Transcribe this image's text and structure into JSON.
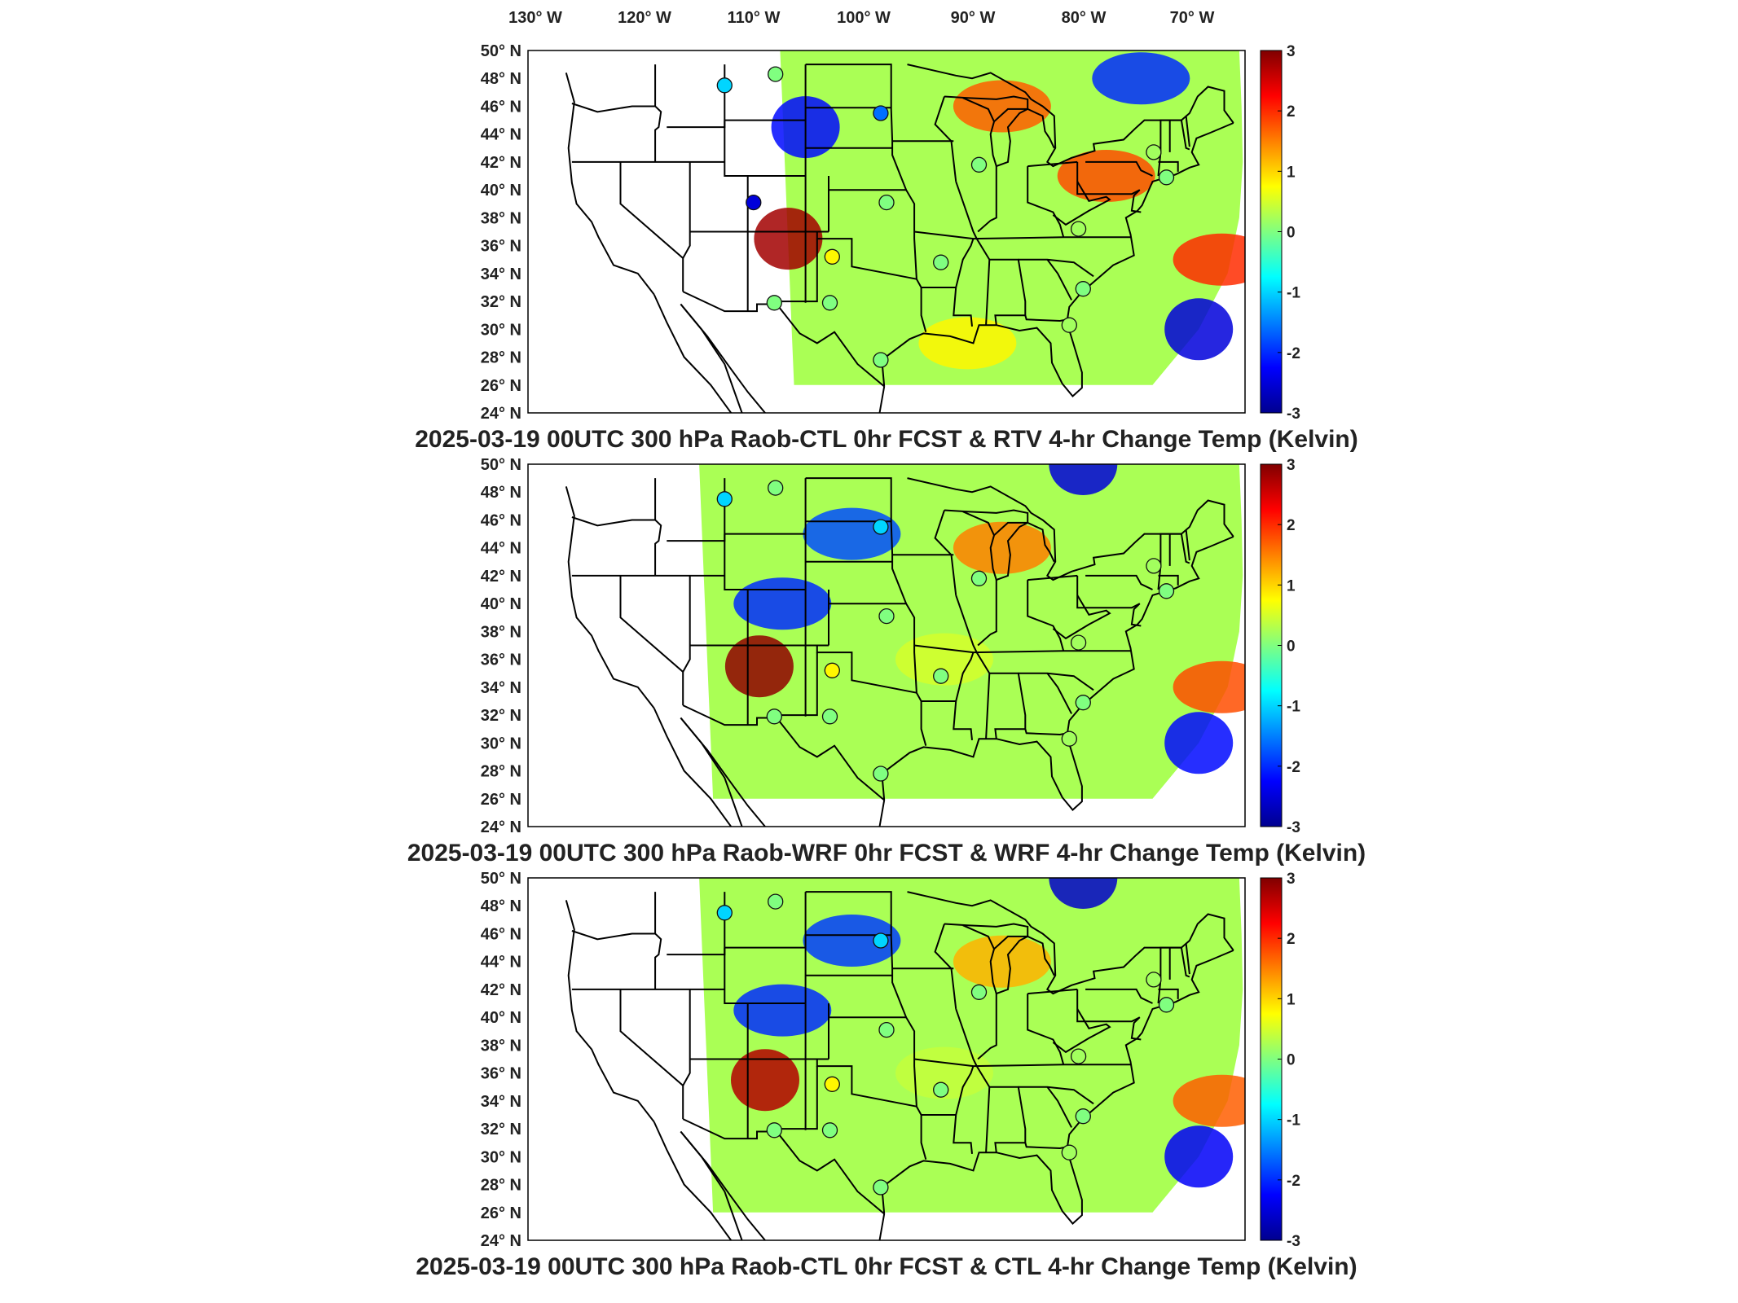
{
  "figure": {
    "top_axis_labels": [
      "130° W",
      "120° W",
      "110° W",
      "100° W",
      "90° W",
      "80° W",
      "70° W"
    ],
    "lat_labels": [
      "50° N",
      "48° N",
      "46° N",
      "44° N",
      "42° N",
      "40° N",
      "38° N",
      "36° N",
      "34° N",
      "32° N",
      "30° N",
      "28° N",
      "26° N",
      "24° N"
    ],
    "colorbar_ticks": [
      "3",
      "2",
      "1",
      "0",
      "-1",
      "-2",
      "-3"
    ],
    "colors": {
      "colormap": [
        "#00008f",
        "#0000ff",
        "#0080ff",
        "#00ffff",
        "#80ff80",
        "#ffff00",
        "#ff8000",
        "#ff0000",
        "#800000"
      ],
      "map_lines": "#000000"
    }
  },
  "chart_data": [
    {
      "type": "heatmap",
      "title": "2025-03-19 00UTC 300 hPa Raob-CTL 0hr FCST & RTV 4-hr Change Temp (Kelvin)",
      "projection": "Lambert conformal, CONUS",
      "lon_range": [
        -130,
        -65
      ],
      "lat_range": [
        24,
        50
      ],
      "color_range": [
        -3,
        3
      ],
      "domain_west_edge_lon": -105,
      "fields": [
        {
          "region": "Colorado / New Mexico",
          "lon": -105.5,
          "lat": 36.5,
          "value": 2.8
        },
        {
          "region": "Wyoming / S. Dakota",
          "lon": -104,
          "lat": 44.5,
          "value": -2.2
        },
        {
          "region": "Upper Michigan / Lake Superior",
          "lon": -87,
          "lat": 46,
          "value": 1.7
        },
        {
          "region": "Pennsylvania",
          "lon": -78,
          "lat": 41,
          "value": 1.8
        },
        {
          "region": "Western Atlantic",
          "lon": -68,
          "lat": 35,
          "value": 2.0
        },
        {
          "region": "Western Atlantic (south)",
          "lon": -70,
          "lat": 30,
          "value": -2.5
        },
        {
          "region": "Maine / Quebec",
          "lon": -75,
          "lat": 48,
          "value": -2.0
        },
        {
          "region": "Gulf Coast",
          "lon": -90,
          "lat": 29,
          "value": 0.8
        }
      ],
      "raob_points": [
        {
          "lon": -111,
          "lat": 47.5,
          "value": -1.0
        },
        {
          "lon": -106.6,
          "lat": 48.3,
          "value": 0.0
        },
        {
          "lon": -97.5,
          "lat": 45.5,
          "value": -1.6
        },
        {
          "lon": -108.5,
          "lat": 39.1,
          "value": -2.5
        },
        {
          "lon": -89,
          "lat": 41.8,
          "value": 0.0
        },
        {
          "lon": -97,
          "lat": 39.1,
          "value": 0.0
        },
        {
          "lon": -101.7,
          "lat": 35.2,
          "value": 0.8
        },
        {
          "lon": -92.3,
          "lat": 34.8,
          "value": 0.0
        },
        {
          "lon": -106.7,
          "lat": 31.9,
          "value": 0.0
        },
        {
          "lon": -101.9,
          "lat": 31.9,
          "value": 0.0
        },
        {
          "lon": -97.5,
          "lat": 27.8,
          "value": 0.0
        },
        {
          "lon": -81.2,
          "lat": 30.3,
          "value": 0.2
        },
        {
          "lon": -80.0,
          "lat": 32.9,
          "value": 0.0
        },
        {
          "lon": -80.4,
          "lat": 37.2,
          "value": 0.2
        },
        {
          "lon": -73.9,
          "lat": 42.7,
          "value": 0.2
        },
        {
          "lon": -72.8,
          "lat": 40.9,
          "value": 0.0
        }
      ]
    },
    {
      "type": "heatmap",
      "title": "2025-03-19 00UTC 300 hPa Raob-WRF 0hr FCST & WRF 4-hr Change Temp (Kelvin)",
      "projection": "Lambert conformal, CONUS",
      "lon_range": [
        -130,
        -65
      ],
      "lat_range": [
        24,
        50
      ],
      "color_range": [
        -3,
        3
      ],
      "domain_west_edge_lon": -112,
      "fields": [
        {
          "region": "Arizona / New Mexico",
          "lon": -108,
          "lat": 35.5,
          "value": 2.9
        },
        {
          "region": "Colorado / Wyoming",
          "lon": -106,
          "lat": 40,
          "value": -2.0
        },
        {
          "region": "Dakotas",
          "lon": -100,
          "lat": 45,
          "value": -1.8
        },
        {
          "region": "Lake Michigan",
          "lon": -87,
          "lat": 44,
          "value": 1.5
        },
        {
          "region": "Western Atlantic",
          "lon": -68,
          "lat": 34,
          "value": 1.8
        },
        {
          "region": "Western Atlantic (south)",
          "lon": -70,
          "lat": 30,
          "value": -2.2
        },
        {
          "region": "Northern border / Quebec",
          "lon": -80,
          "lat": 50,
          "value": -2.5
        },
        {
          "region": "Central US",
          "lon": -92,
          "lat": 36,
          "value": 0.5
        }
      ],
      "raob_points": [
        {
          "lon": -111,
          "lat": 47.5,
          "value": -1.0
        },
        {
          "lon": -106.6,
          "lat": 48.3,
          "value": 0.0
        },
        {
          "lon": -97.5,
          "lat": 45.5,
          "value": -1.0
        },
        {
          "lon": -89,
          "lat": 41.8,
          "value": 0.0
        },
        {
          "lon": -97,
          "lat": 39.1,
          "value": 0.0
        },
        {
          "lon": -101.7,
          "lat": 35.2,
          "value": 0.8
        },
        {
          "lon": -92.3,
          "lat": 34.8,
          "value": 0.0
        },
        {
          "lon": -106.7,
          "lat": 31.9,
          "value": 0.0
        },
        {
          "lon": -101.9,
          "lat": 31.9,
          "value": 0.0
        },
        {
          "lon": -97.5,
          "lat": 27.8,
          "value": 0.0
        },
        {
          "lon": -81.2,
          "lat": 30.3,
          "value": 0.2
        },
        {
          "lon": -80.0,
          "lat": 32.9,
          "value": 0.0
        },
        {
          "lon": -80.4,
          "lat": 37.2,
          "value": 0.2
        },
        {
          "lon": -73.9,
          "lat": 42.7,
          "value": 0.2
        },
        {
          "lon": -72.8,
          "lat": 40.9,
          "value": 0.0
        }
      ]
    },
    {
      "type": "heatmap",
      "title": "2025-03-19 00UTC 300 hPa Raob-CTL 0hr FCST & CTL 4-hr Change Temp (Kelvin)",
      "projection": "Lambert conformal, CONUS",
      "lon_range": [
        -130,
        -65
      ],
      "lat_range": [
        24,
        50
      ],
      "color_range": [
        -3,
        3
      ],
      "domain_west_edge_lon": -112,
      "fields": [
        {
          "region": "Arizona / New Mexico",
          "lon": -107.5,
          "lat": 35.5,
          "value": 2.7
        },
        {
          "region": "Colorado / Wyoming",
          "lon": -106,
          "lat": 40.5,
          "value": -2.0
        },
        {
          "region": "Dakotas",
          "lon": -100,
          "lat": 45.5,
          "value": -1.9
        },
        {
          "region": "Lake Michigan",
          "lon": -87,
          "lat": 44,
          "value": 1.2
        },
        {
          "region": "Western Atlantic",
          "lon": -68,
          "lat": 34,
          "value": 1.7
        },
        {
          "region": "Western Atlantic (south)",
          "lon": -70,
          "lat": 30,
          "value": -2.3
        },
        {
          "region": "Northern border / Quebec",
          "lon": -80,
          "lat": 50,
          "value": -2.6
        },
        {
          "region": "Central US",
          "lon": -92,
          "lat": 36,
          "value": 0.4
        }
      ],
      "raob_points": [
        {
          "lon": -111,
          "lat": 47.5,
          "value": -1.0
        },
        {
          "lon": -106.6,
          "lat": 48.3,
          "value": 0.0
        },
        {
          "lon": -97.5,
          "lat": 45.5,
          "value": -1.0
        },
        {
          "lon": -89,
          "lat": 41.8,
          "value": 0.0
        },
        {
          "lon": -97,
          "lat": 39.1,
          "value": 0.0
        },
        {
          "lon": -101.7,
          "lat": 35.2,
          "value": 0.8
        },
        {
          "lon": -92.3,
          "lat": 34.8,
          "value": 0.0
        },
        {
          "lon": -106.7,
          "lat": 31.9,
          "value": 0.0
        },
        {
          "lon": -101.9,
          "lat": 31.9,
          "value": 0.0
        },
        {
          "lon": -97.5,
          "lat": 27.8,
          "value": 0.0
        },
        {
          "lon": -81.2,
          "lat": 30.3,
          "value": 0.2
        },
        {
          "lon": -80.0,
          "lat": 32.9,
          "value": 0.0
        },
        {
          "lon": -80.4,
          "lat": 37.2,
          "value": 0.2
        },
        {
          "lon": -73.9,
          "lat": 42.7,
          "value": 0.2
        },
        {
          "lon": -72.8,
          "lat": 40.9,
          "value": 0.0
        }
      ]
    }
  ]
}
